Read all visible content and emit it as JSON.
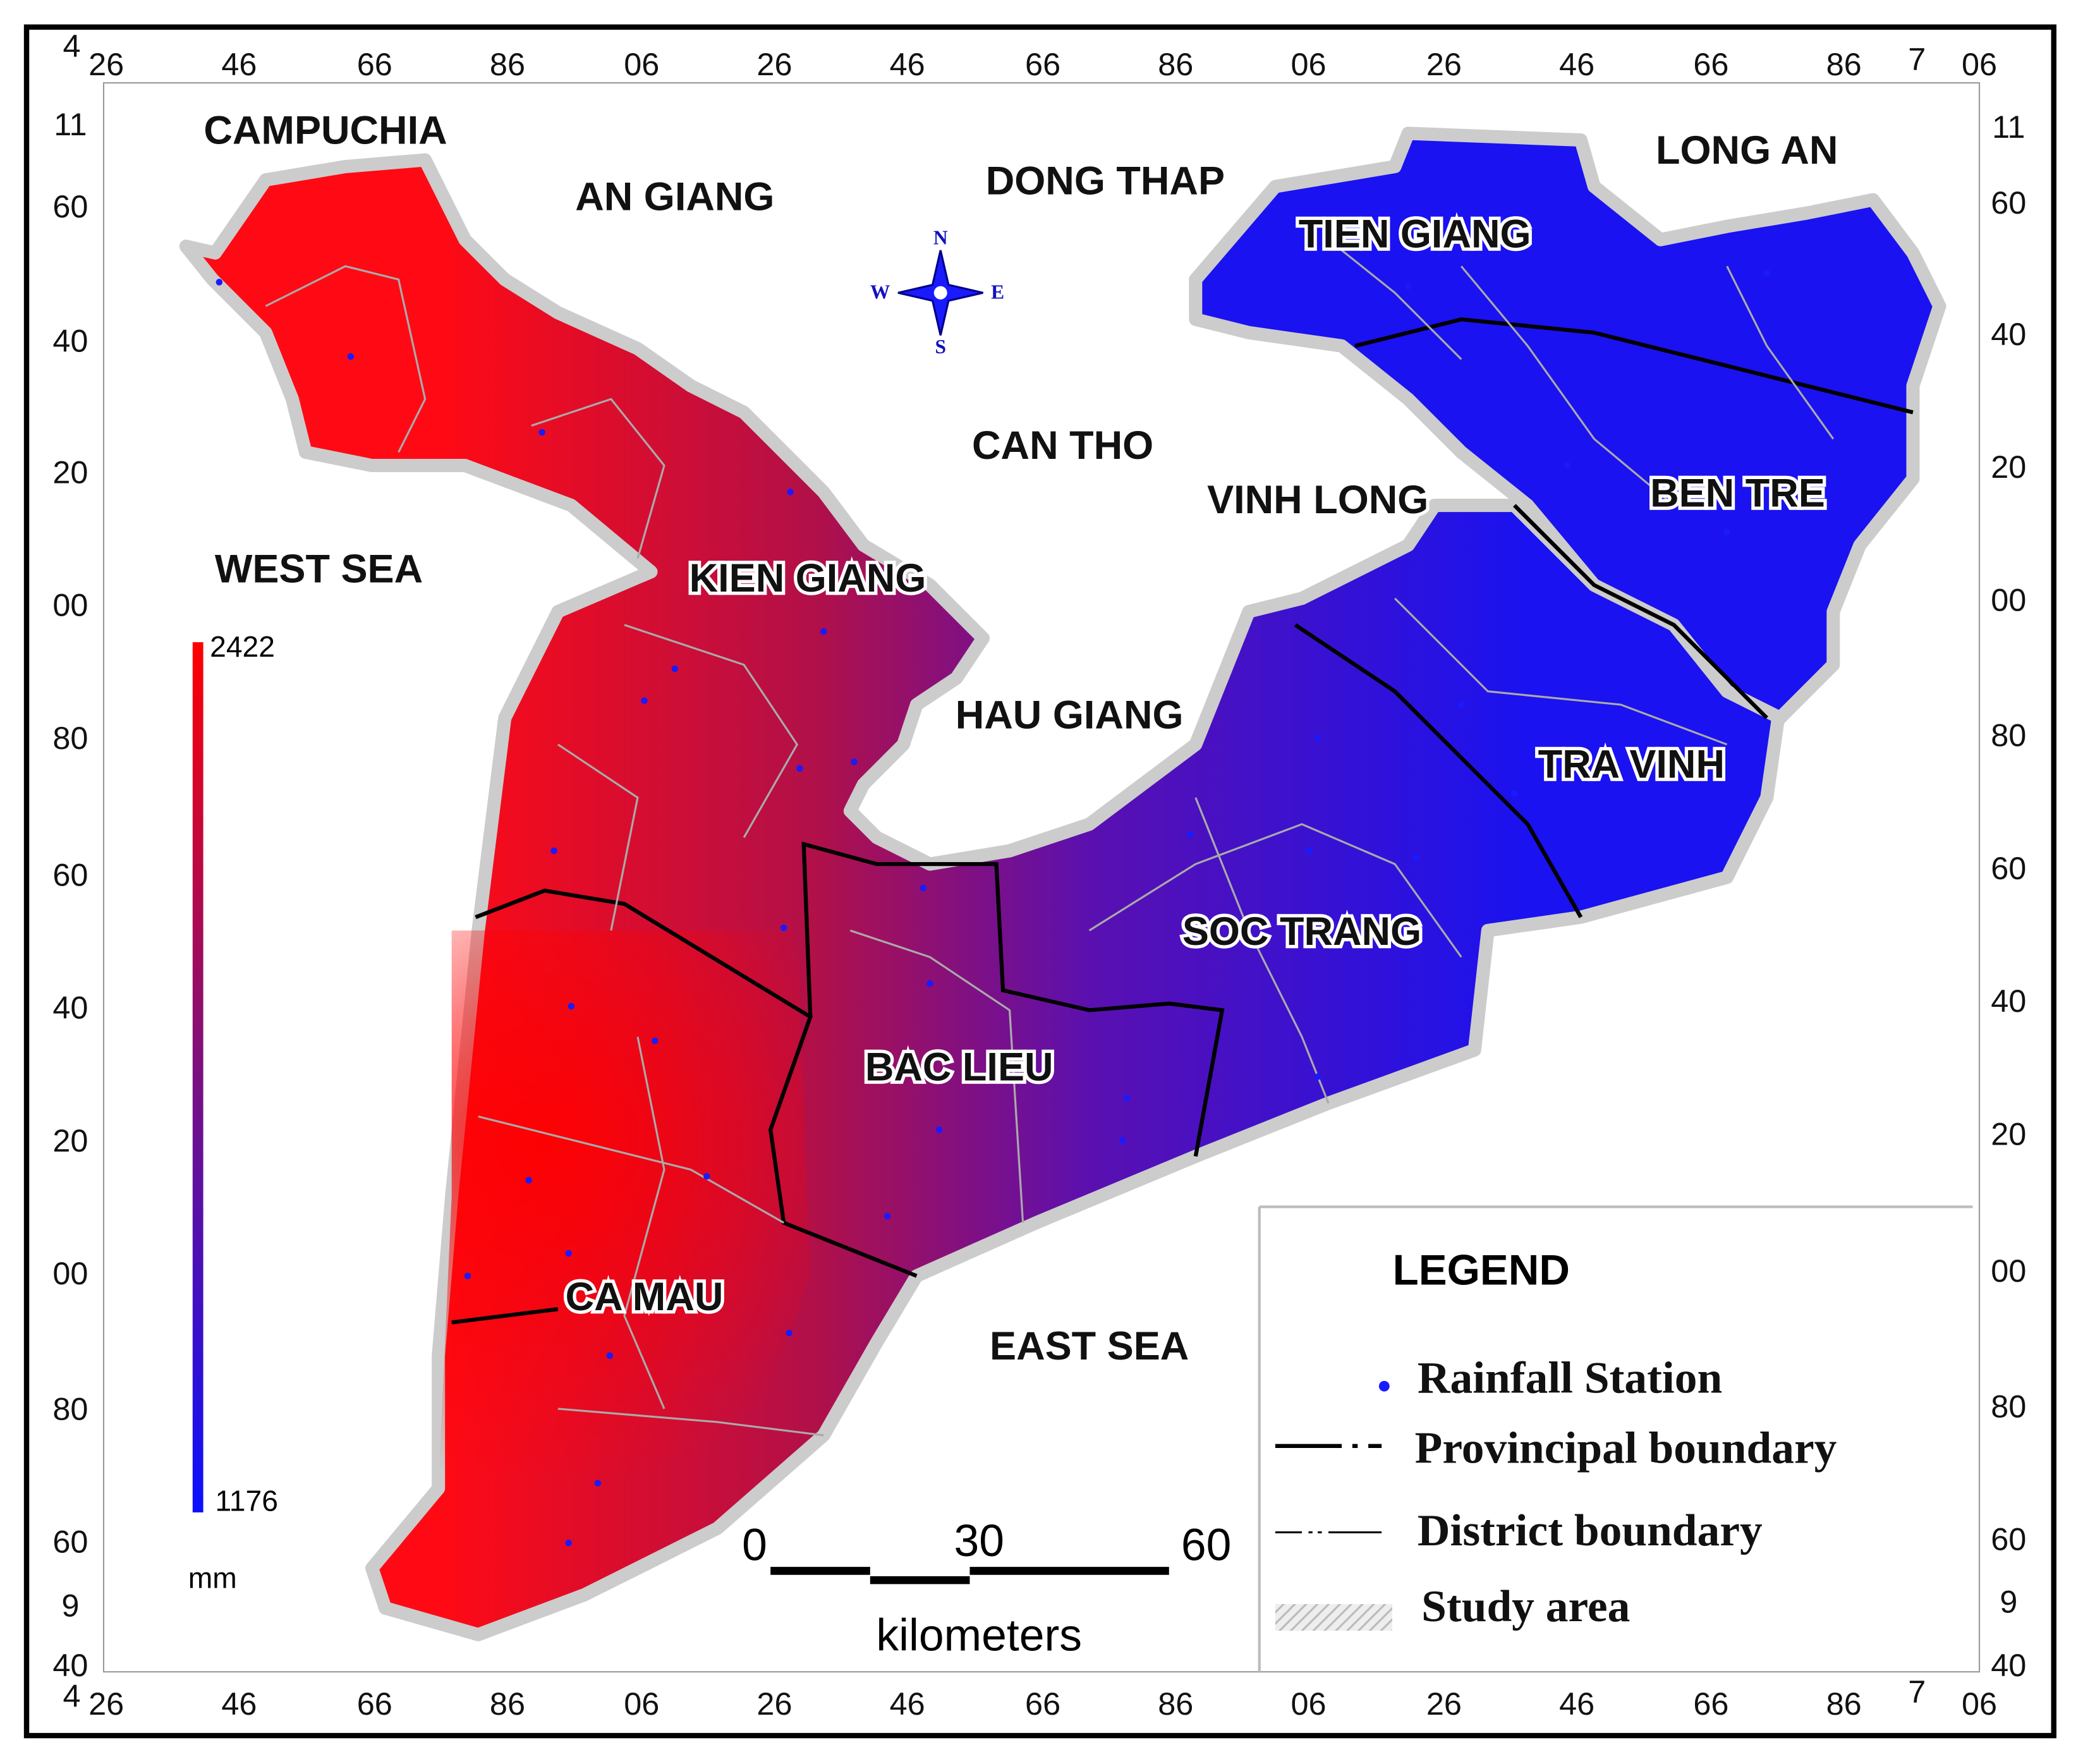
{
  "map": {
    "regions": [
      "CAMPUCHIA",
      "AN GIANG",
      "DONG THAP",
      "LONG AN",
      "TIEN GIANG",
      "CAN THO",
      "VINH LONG",
      "BEN TRE",
      "WEST SEA",
      "KIEN GIANG",
      "HAU GIANG",
      "TRA VINH",
      "SOC TRANG",
      "BAC LIEU",
      "CA MAU",
      "EAST SEA"
    ],
    "compass": [
      "N",
      "E",
      "S",
      "W"
    ],
    "colorbar": {
      "max": 2422,
      "min": 1176,
      "unit": "mm"
    },
    "scale_bar": {
      "ticks": [
        0,
        30,
        60
      ],
      "unit": "kilometers"
    },
    "legend": {
      "title": "LEGEND",
      "items": [
        "Rainfall Station",
        "Provincipal boundary",
        "District boundary",
        "Study area"
      ]
    },
    "frame": {
      "x_degrees": [
        "4",
        "7"
      ],
      "x_minutes": [
        "26",
        "46",
        "66",
        "86",
        "06",
        "26",
        "46",
        "66",
        "86",
        "06",
        "26",
        "46",
        "66",
        "86",
        "06"
      ],
      "y_labels": [
        "11",
        "60",
        "40",
        "20",
        "00",
        "80",
        "60",
        "40",
        "20",
        "00",
        "80",
        "60",
        "9",
        "40"
      ]
    }
  }
}
